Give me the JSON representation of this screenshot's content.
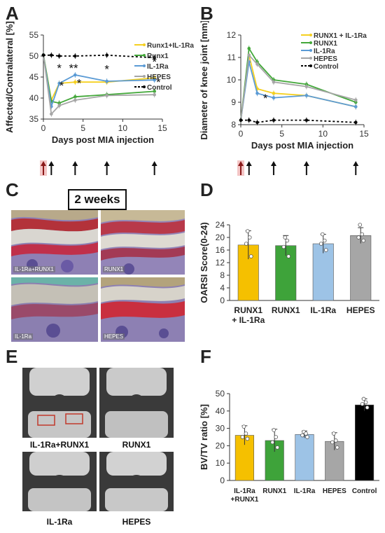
{
  "panels": {
    "a": "A",
    "b": "B",
    "c": "C",
    "d": "D",
    "e": "E",
    "f": "F"
  },
  "chart_data": [
    {
      "id": "A",
      "type": "line",
      "xlabel": "Days post MIA injection",
      "ylabel": "Affected/Contralateral [%]",
      "xlim": [
        0,
        15
      ],
      "ylim": [
        35,
        55
      ],
      "xticks": [
        "0",
        "5",
        "10",
        "15"
      ],
      "yticks": [
        "35",
        "40",
        "45",
        "50",
        "55"
      ],
      "legend_position": "right",
      "series": [
        {
          "name": "Runx1+IL-1Ra",
          "color": "#f5d020",
          "x": [
            0,
            1,
            2,
            4,
            8,
            14
          ],
          "y": [
            50.3,
            39.5,
            43.5,
            43.8,
            43.8,
            44.8
          ]
        },
        {
          "name": "Runx1",
          "color": "#43a83a",
          "x": [
            0,
            1,
            2,
            4,
            8,
            14
          ],
          "y": [
            50.3,
            39.2,
            38.8,
            40.3,
            40.8,
            41.6
          ]
        },
        {
          "name": "IL-1Ra",
          "color": "#5b9bd5",
          "x": [
            0,
            1,
            2,
            4,
            8,
            14
          ],
          "y": [
            50.3,
            38.0,
            43.5,
            45.5,
            44.0,
            44.3
          ]
        },
        {
          "name": "HEPES",
          "color": "#a6a6a6",
          "x": [
            0,
            1,
            2,
            4,
            8,
            14
          ],
          "y": [
            50.3,
            36.2,
            38.2,
            39.5,
            40.6,
            40.8
          ]
        },
        {
          "name": "Control",
          "color": "#000000",
          "dashed": true,
          "x": [
            0,
            1,
            2,
            4,
            8,
            14
          ],
          "y": [
            50.2,
            50.2,
            50.0,
            50.0,
            50.2,
            49.6
          ]
        }
      ],
      "annotations": [
        {
          "text": "*",
          "x": 2,
          "y": 46.2
        },
        {
          "text": "**",
          "x": 3.8,
          "y": 46.2
        },
        {
          "text": "*",
          "x": 2.3,
          "y": 42.0
        },
        {
          "text": "*",
          "x": 4.5,
          "y": 42.6
        },
        {
          "text": "*",
          "x": 8,
          "y": 45.9
        },
        {
          "text": "*",
          "x": 14,
          "y": 47.7
        },
        {
          "text": "*",
          "x": 14.5,
          "y": 42.8
        }
      ],
      "arrows_days": [
        0,
        1,
        4,
        8,
        14
      ]
    },
    {
      "id": "B",
      "type": "line",
      "xlabel": "Days post MIA injection",
      "ylabel": "Diameter of knee joint [mm]",
      "xlim": [
        0,
        15
      ],
      "ylim": [
        8,
        12
      ],
      "xticks": [
        "0",
        "5",
        "10",
        "15"
      ],
      "yticks": [
        "8",
        "9",
        "10",
        "11",
        "12"
      ],
      "legend_position": "top-right",
      "series": [
        {
          "name": "RUNX1 + IL-1Ra",
          "color": "#f5d020",
          "x": [
            0,
            1,
            2,
            4,
            8,
            14
          ],
          "y": [
            8.2,
            11.1,
            9.6,
            9.4,
            9.3,
            8.8
          ]
        },
        {
          "name": "RUNX1",
          "color": "#43a83a",
          "x": [
            0,
            1,
            2,
            4,
            8,
            14
          ],
          "y": [
            8.2,
            11.4,
            10.8,
            10.0,
            9.8,
            9.0
          ]
        },
        {
          "name": "IL-1Ra",
          "color": "#5b9bd5",
          "x": [
            0,
            1,
            2,
            4,
            8,
            14
          ],
          "y": [
            8.2,
            10.8,
            9.4,
            9.2,
            9.3,
            8.8
          ]
        },
        {
          "name": "HEPES",
          "color": "#a6a6a6",
          "x": [
            0,
            1,
            2,
            4,
            8,
            14
          ],
          "y": [
            8.2,
            11.1,
            10.7,
            9.9,
            9.7,
            9.1
          ]
        },
        {
          "name": "Control",
          "color": "#000000",
          "dashed": true,
          "x": [
            0,
            1,
            2,
            4,
            8,
            14
          ],
          "y": [
            8.2,
            8.2,
            8.1,
            8.2,
            8.2,
            8.1
          ]
        }
      ],
      "annotations": [
        {
          "text": "*",
          "x": 3,
          "y": 9.0
        }
      ],
      "arrows_days": [
        0,
        1,
        4,
        8,
        14
      ]
    },
    {
      "id": "D",
      "type": "bar",
      "ylabel": "OARSI Score(0-24)",
      "ylim": [
        0,
        24
      ],
      "yticks": [
        "0",
        "4",
        "8",
        "12",
        "16",
        "20",
        "24"
      ],
      "categories": [
        "RUNX1 + IL-1Ra",
        "RUNX1",
        "IL-1Ra",
        "HEPES"
      ],
      "values": [
        17.6,
        17.4,
        18.0,
        20.6
      ],
      "errors": [
        4.5,
        3.2,
        3.0,
        2.5
      ],
      "points": [
        [
          22,
          20,
          18,
          14
        ],
        [
          20,
          19,
          17,
          14
        ],
        [
          21,
          19,
          18,
          16
        ],
        [
          24,
          21,
          20,
          19
        ]
      ],
      "colors": [
        "#f5c000",
        "#3ea33a",
        "#9dc3e6",
        "#a6a6a6"
      ]
    },
    {
      "id": "F",
      "type": "bar",
      "ylabel": "BV/TV ratio [%]",
      "ylim": [
        0,
        50
      ],
      "yticks": [
        "0",
        "10",
        "20",
        "30",
        "40",
        "50"
      ],
      "categories": [
        "IL-1Ra +RUNX1",
        "RUNX1",
        "IL-1Ra",
        "HEPES",
        "Control"
      ],
      "values": [
        26.0,
        23.0,
        26.5,
        22.5,
        43.5
      ],
      "errors": [
        5.5,
        6.5,
        2.0,
        5.0,
        3.5
      ],
      "points": [
        [
          31,
          27,
          25,
          24
        ],
        [
          29,
          25,
          22,
          19
        ],
        [
          28,
          27,
          26,
          25
        ],
        [
          27,
          23,
          22,
          19
        ],
        [
          47,
          45,
          44,
          42
        ]
      ],
      "colors": [
        "#f5c000",
        "#3ea33a",
        "#9dc3e6",
        "#a6a6a6",
        "#000000"
      ]
    }
  ],
  "histology": {
    "heading": "2 weeks",
    "labels": [
      "IL-1Ra+RUNX1",
      "RUNX1",
      "IL-1Ra",
      "HEPES"
    ]
  },
  "ct": {
    "labels": [
      "IL-1Ra+RUNX1",
      "RUNX1",
      "IL-1Ra",
      "HEPES"
    ]
  }
}
